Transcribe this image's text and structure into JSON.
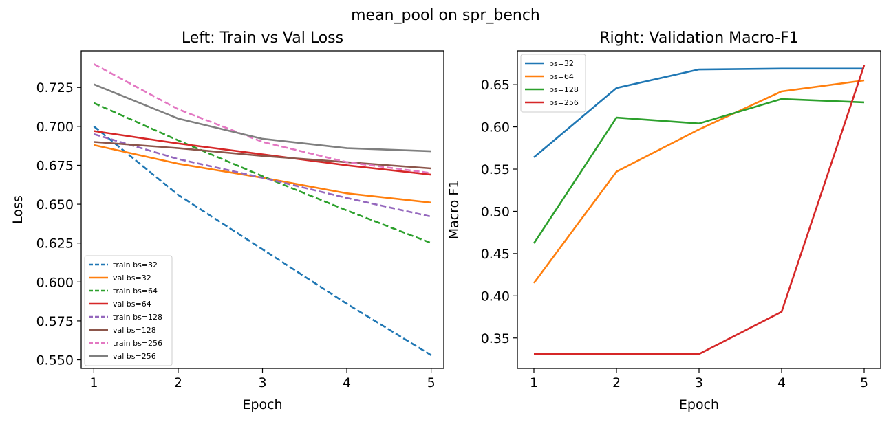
{
  "figure": {
    "suptitle": "mean_pool on spr_bench"
  },
  "chart_data": [
    {
      "type": "line",
      "title": "Left: Train vs Val Loss",
      "xlabel": "Epoch",
      "ylabel": "Loss",
      "x": [
        1,
        2,
        3,
        4,
        5
      ],
      "xlim": [
        0.85,
        5.15
      ],
      "ylim": [
        0.5445,
        0.7485
      ],
      "xticks": [
        1,
        2,
        3,
        4,
        5
      ],
      "yticks": [
        0.55,
        0.575,
        0.6,
        0.625,
        0.65,
        0.675,
        0.7,
        0.725
      ],
      "ytick_decimals": 3,
      "grid": false,
      "legend_position": "lower-left",
      "series": [
        {
          "name": "train bs=32",
          "values": [
            0.7,
            0.656,
            0.621,
            0.586,
            0.553
          ],
          "color": "#1f77b4",
          "dashed": true
        },
        {
          "name": "val bs=32",
          "values": [
            0.688,
            0.676,
            0.667,
            0.657,
            0.651
          ],
          "color": "#ff7f0e",
          "dashed": false
        },
        {
          "name": "train bs=64",
          "values": [
            0.715,
            0.691,
            0.668,
            0.646,
            0.625
          ],
          "color": "#2ca02c",
          "dashed": true
        },
        {
          "name": "val bs=64",
          "values": [
            0.697,
            0.689,
            0.682,
            0.675,
            0.669
          ],
          "color": "#d62728",
          "dashed": false
        },
        {
          "name": "train bs=128",
          "values": [
            0.695,
            0.679,
            0.667,
            0.654,
            0.642
          ],
          "color": "#9467bd",
          "dashed": true
        },
        {
          "name": "val bs=128",
          "values": [
            0.69,
            0.686,
            0.681,
            0.677,
            0.673
          ],
          "color": "#8c564b",
          "dashed": false
        },
        {
          "name": "train bs=256",
          "values": [
            0.74,
            0.711,
            0.69,
            0.677,
            0.67
          ],
          "color": "#e377c2",
          "dashed": true
        },
        {
          "name": "val bs=256",
          "values": [
            0.727,
            0.705,
            0.692,
            0.686,
            0.684
          ],
          "color": "#7f7f7f",
          "dashed": false
        }
      ]
    },
    {
      "type": "line",
      "title": "Right: Validation Macro-F1",
      "xlabel": "Epoch",
      "ylabel": "Macro F1",
      "x": [
        1,
        2,
        3,
        4,
        5
      ],
      "xlim": [
        0.8,
        5.2
      ],
      "ylim": [
        0.314,
        0.69
      ],
      "xticks": [
        1,
        2,
        3,
        4,
        5
      ],
      "yticks": [
        0.35,
        0.4,
        0.45,
        0.5,
        0.55,
        0.6,
        0.65
      ],
      "ytick_decimals": 2,
      "grid": false,
      "legend_position": "upper-left",
      "series": [
        {
          "name": "bs=32",
          "values": [
            0.564,
            0.646,
            0.668,
            0.669,
            0.669
          ],
          "color": "#1f77b4",
          "dashed": false
        },
        {
          "name": "bs=64",
          "values": [
            0.415,
            0.547,
            0.597,
            0.642,
            0.655
          ],
          "color": "#ff7f0e",
          "dashed": false
        },
        {
          "name": "bs=128",
          "values": [
            0.462,
            0.611,
            0.604,
            0.633,
            0.629
          ],
          "color": "#2ca02c",
          "dashed": false
        },
        {
          "name": "bs=256",
          "values": [
            0.331,
            0.331,
            0.331,
            0.381,
            0.673
          ],
          "color": "#d62728",
          "dashed": false
        }
      ]
    }
  ]
}
